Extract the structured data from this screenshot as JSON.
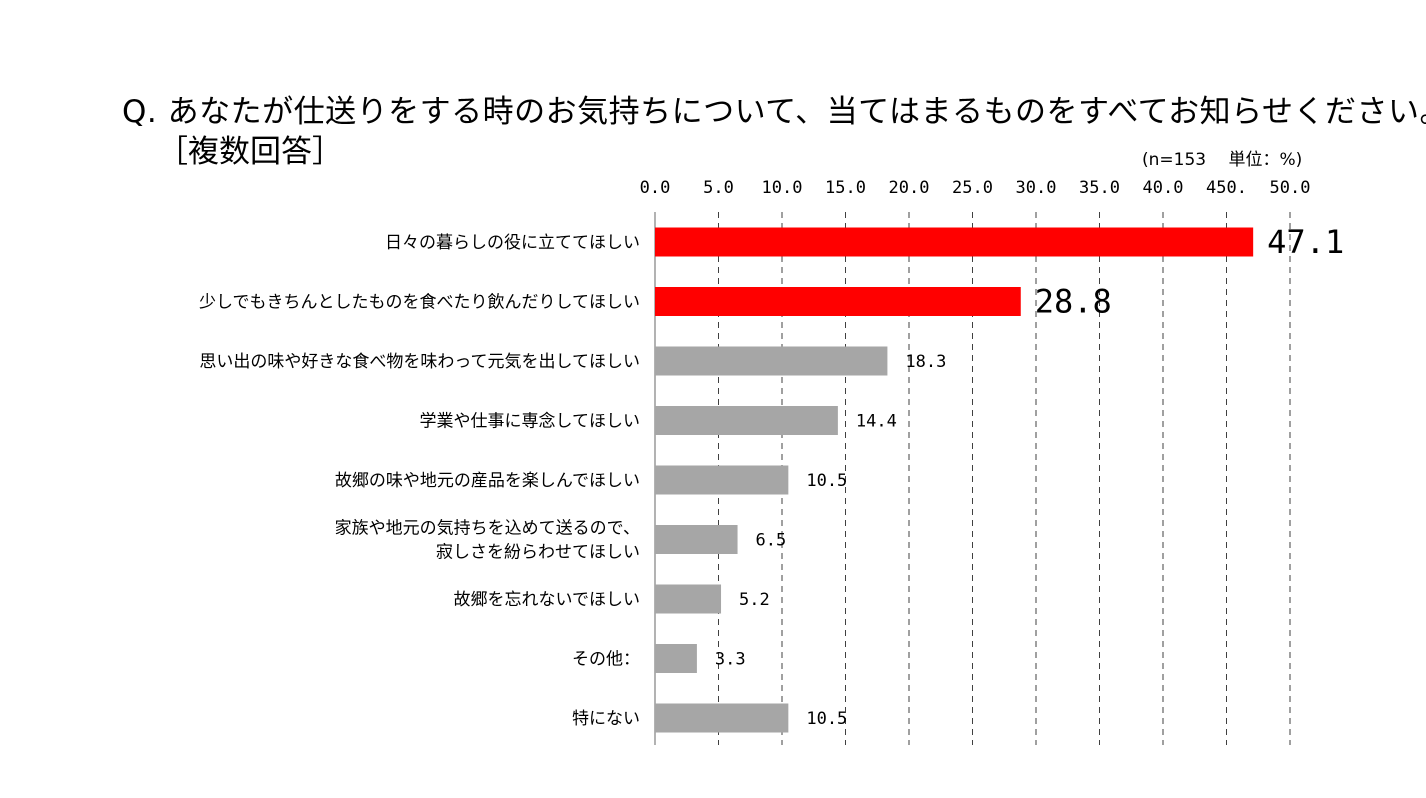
{
  "title": {
    "line1": "Q. あなたが仕送りをする時のお気持ちについて、当てはまるものをすべてお知らせください。",
    "line2": "［複数回答］"
  },
  "note": "(n=153　 単位：%)",
  "chart_data": {
    "type": "bar",
    "orientation": "horizontal",
    "xlim": [
      0,
      50
    ],
    "tick_labels": [
      "0.0",
      "5.0",
      "10.0",
      "15.0",
      "20.0",
      "25.0",
      "30.0",
      "35.0",
      "40.0",
      "450.",
      "50.0"
    ],
    "grid": "vertical dashed",
    "categories": [
      [
        "日々の暮らしの役に立ててほしい"
      ],
      [
        "少しでもきちんとしたものを食べたり飲んだりしてほしい"
      ],
      [
        "思い出の味や好きな食べ物を味わって元気を出してほしい"
      ],
      [
        "学業や仕事に専念してほしい"
      ],
      [
        "故郷の味や地元の産品を楽しんでほしい"
      ],
      [
        "家族や地元の気持ちを込めて送るので、",
        "寂しさを紛らわせてほしい"
      ],
      [
        "故郷を忘れないでほしい"
      ],
      [
        "その他："
      ],
      [
        "特にない"
      ]
    ],
    "values": [
      47.1,
      28.8,
      18.3,
      14.4,
      10.5,
      6.5,
      5.2,
      3.3,
      10.5
    ],
    "value_labels": [
      "47.1",
      "28.8",
      "18.3",
      "14.4",
      "10.5",
      "6.5",
      "5.2",
      "3.3",
      "10.5"
    ],
    "highlight": [
      true,
      true,
      false,
      false,
      false,
      false,
      false,
      false,
      false
    ],
    "colors": {
      "highlight": "#ff0000",
      "normal": "#a6a6a6",
      "grid": "#404040"
    }
  }
}
